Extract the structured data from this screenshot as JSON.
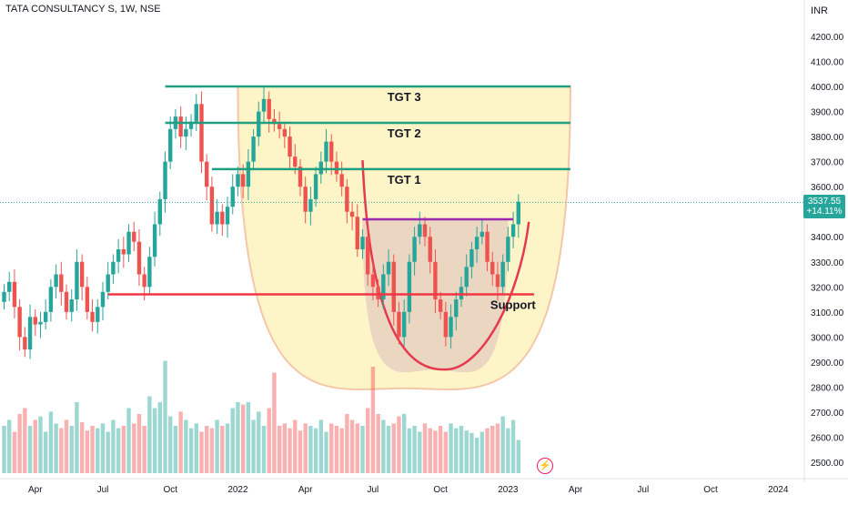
{
  "header": {
    "symbol": "TATA CONSULTANCY S",
    "interval": "1W",
    "exchange": "NSE",
    "title": "TATA CONSULTANCY S, 1W, NSE"
  },
  "currency": "INR",
  "price": {
    "last": "3537.55",
    "change": "+14.11%"
  },
  "colors": {
    "up": "#26a69a",
    "down": "#ef5350",
    "target_line": "#1f9e80",
    "support_line": "#f23645",
    "neckline": "#9c27b0",
    "cup_fill": "#fdf5c5",
    "cup_outline": "#f3c5a5",
    "inner_cup": "#e8d1c0"
  },
  "icons": {
    "live": "lightning-icon"
  },
  "chart_data": {
    "type": "candlestick",
    "x_axis": {
      "labels": [
        {
          "label": "Apr",
          "t": 6
        },
        {
          "label": "Jul",
          "t": 19
        },
        {
          "label": "Oct",
          "t": 32
        },
        {
          "label": "2022",
          "t": 45
        },
        {
          "label": "Apr",
          "t": 58
        },
        {
          "label": "Jul",
          "t": 71
        },
        {
          "label": "Oct",
          "t": 84
        },
        {
          "label": "2023",
          "t": 97
        },
        {
          "label": "Apr",
          "t": 110
        },
        {
          "label": "Jul",
          "t": 123
        },
        {
          "label": "Oct",
          "t": 136
        },
        {
          "label": "2024",
          "t": 149
        }
      ]
    },
    "y_axis": {
      "ylim": [
        2460,
        4285
      ],
      "ticks": [
        "4200.00",
        "4100.00",
        "4000.00",
        "3900.00",
        "3800.00",
        "3700.00",
        "3600.00",
        "3500.00",
        "3400.00",
        "3300.00",
        "3200.00",
        "3100.00",
        "3000.00",
        "2900.00",
        "2800.00",
        "2700.00",
        "2600.00",
        "2500.00"
      ]
    },
    "closes": [
      3180,
      3220,
      3120,
      3000,
      2950,
      3080,
      3050,
      3060,
      3100,
      3200,
      3250,
      3180,
      3100,
      3150,
      3300,
      3200,
      3100,
      3060,
      3120,
      3180,
      3250,
      3300,
      3350,
      3330,
      3420,
      3380,
      3250,
      3200,
      3320,
      3450,
      3550,
      3700,
      3830,
      3880,
      3800,
      3830,
      3860,
      3930,
      3700,
      3600,
      3450,
      3500,
      3450,
      3520,
      3600,
      3650,
      3600,
      3700,
      3800,
      3900,
      3950,
      3870,
      3850,
      3830,
      3800,
      3720,
      3680,
      3600,
      3500,
      3550,
      3650,
      3700,
      3780,
      3700,
      3650,
      3600,
      3500,
      3480,
      3350,
      3400,
      3250,
      3200,
      3150,
      3250,
      3300,
      3100,
      3000,
      3100,
      3300,
      3400,
      3450,
      3400,
      3300,
      3150,
      3100,
      3000,
      3080,
      3150,
      3200,
      3280,
      3350,
      3400,
      3420,
      3300,
      3250,
      3200,
      3300,
      3400,
      3450,
      3540
    ],
    "volume_rel": [
      0.4,
      0.45,
      0.35,
      0.5,
      0.55,
      0.4,
      0.45,
      0.48,
      0.35,
      0.52,
      0.42,
      0.38,
      0.45,
      0.4,
      0.6,
      0.43,
      0.36,
      0.4,
      0.38,
      0.42,
      0.35,
      0.45,
      0.38,
      0.4,
      0.55,
      0.42,
      0.5,
      0.4,
      0.65,
      0.55,
      0.6,
      0.95,
      0.48,
      0.4,
      0.52,
      0.45,
      0.38,
      0.42,
      0.35,
      0.4,
      0.38,
      0.45,
      0.4,
      0.42,
      0.55,
      0.6,
      0.58,
      0.6,
      0.45,
      0.52,
      0.4,
      0.55,
      0.85,
      0.4,
      0.42,
      0.38,
      0.45,
      0.36,
      0.42,
      0.4,
      0.38,
      0.45,
      0.35,
      0.42,
      0.4,
      0.38,
      0.5,
      0.45,
      0.42,
      0.4,
      0.55,
      0.9,
      0.5,
      0.45,
      0.4,
      0.42,
      0.48,
      0.5,
      0.38,
      0.4,
      0.35,
      0.42,
      0.38,
      0.36,
      0.4,
      0.35,
      0.42,
      0.38,
      0.4,
      0.36,
      0.34,
      0.3,
      0.35,
      0.38,
      0.4,
      0.42,
      0.48,
      0.38,
      0.45,
      0.28
    ],
    "levels": [
      {
        "name": "TGT 3",
        "value": 4000,
        "t_start": 31,
        "t_end": 109
      },
      {
        "name": "TGT 2",
        "value": 3855,
        "t_start": 31,
        "t_end": 109
      },
      {
        "name": "TGT 1",
        "value": 3670,
        "t_start": 40,
        "t_end": 109
      },
      {
        "name": "Support",
        "value": 3170,
        "t_start": 20,
        "t_end": 102
      }
    ],
    "neckline": {
      "value": 3470,
      "t_start": 69,
      "t_end": 98
    },
    "cup": {
      "t_start": 45,
      "t_end": 109,
      "top": 4000,
      "bottom": 2795
    },
    "inner_cup": {
      "t_start": 69,
      "t_end": 97,
      "top": 3470,
      "bottom": 2870
    },
    "last_close": 3537.55
  }
}
